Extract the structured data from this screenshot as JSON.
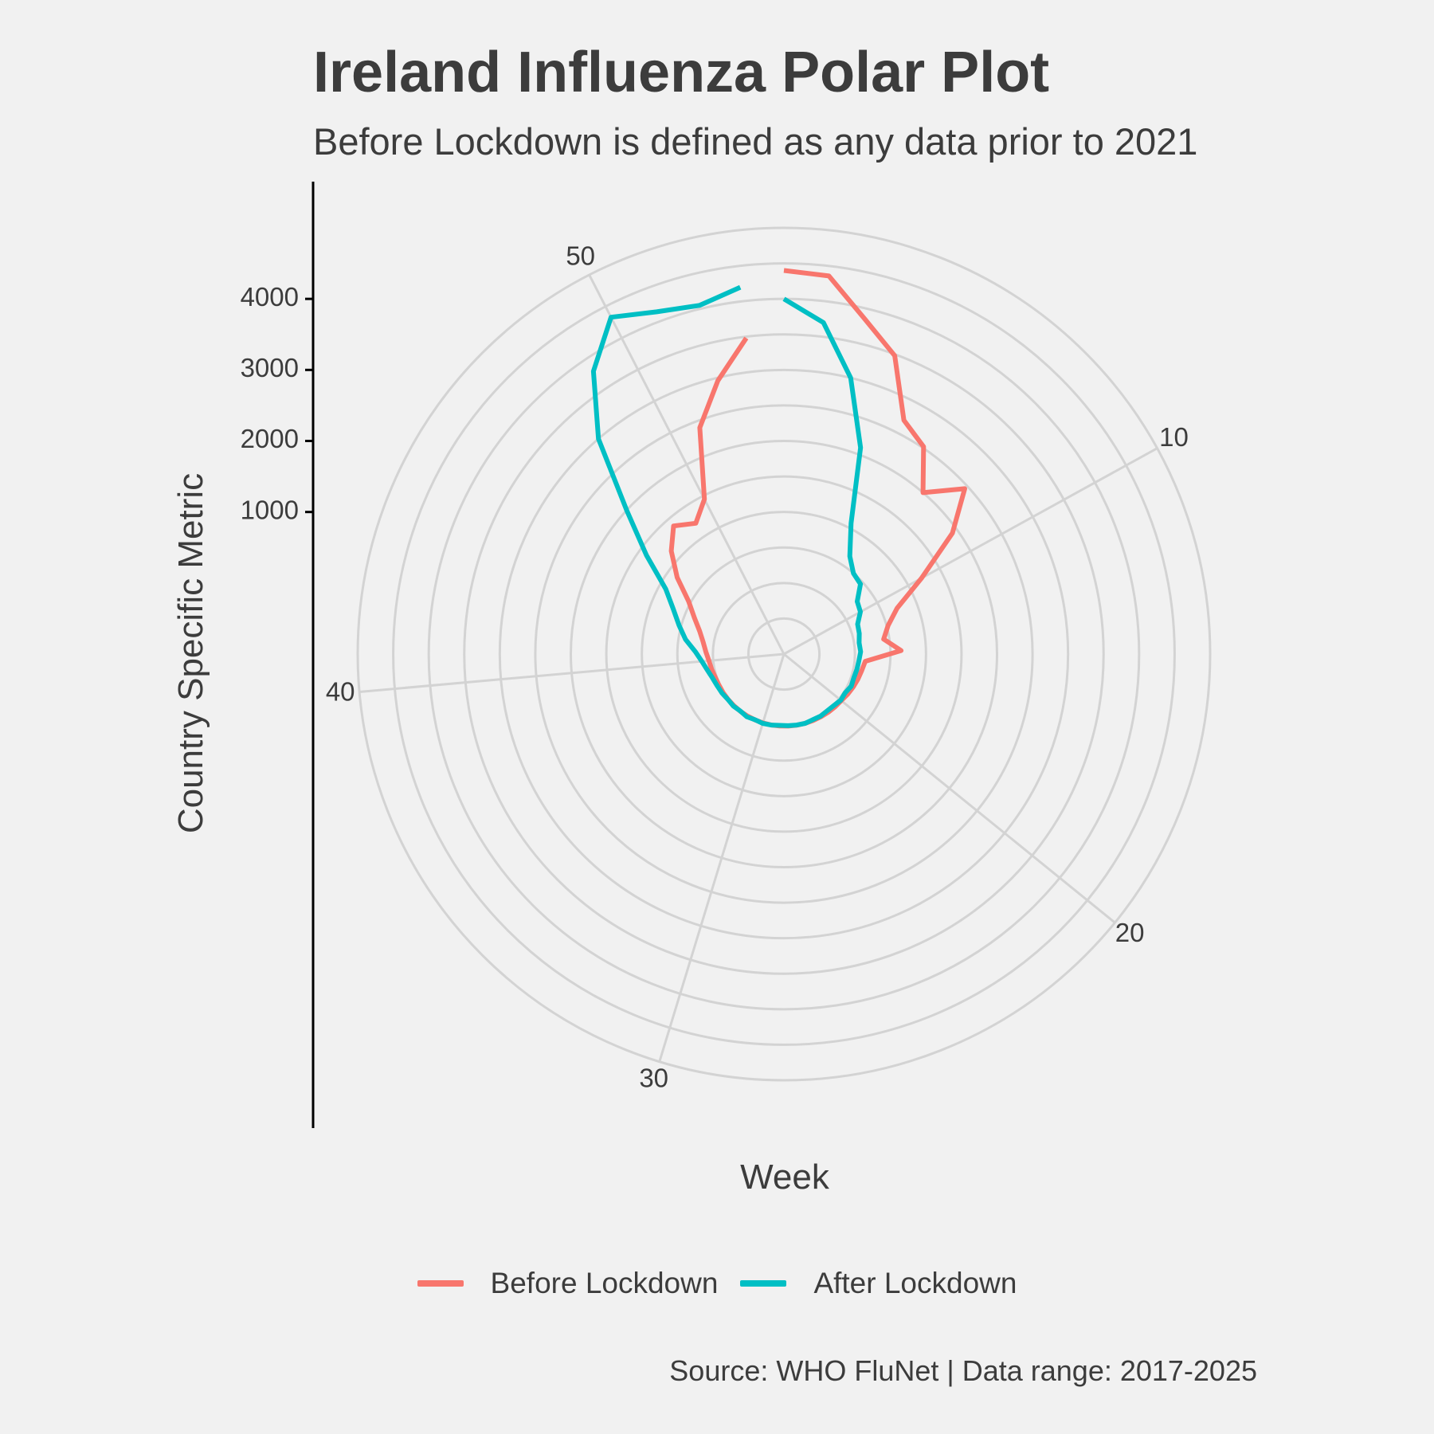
{
  "title": "Ireland Influenza Polar Plot",
  "subtitle": "Before Lockdown is defined as any data prior to 2021",
  "caption": "Source: WHO FluNet | Data range: 2017-2025",
  "chart_data": {
    "type": "line",
    "coord": "polar",
    "xlabel": "Week",
    "ylabel": "Country Specific Metric",
    "x_ticks": [
      "10",
      "20",
      "30",
      "40",
      "50"
    ],
    "y_ticks": [
      "1000",
      "2000",
      "3000",
      "4000"
    ],
    "ylim": [
      -1000,
      5000
    ],
    "x_range": [
      1,
      53
    ],
    "grid": true,
    "legend_position": "bottom",
    "series": [
      {
        "name": "Before Lockdown",
        "color": "#F8766D",
        "x": [
          1,
          2,
          3,
          4,
          5,
          6,
          7,
          8,
          9,
          10,
          11,
          12,
          13,
          14,
          15,
          16,
          17,
          18,
          19,
          20,
          21,
          22,
          23,
          24,
          25,
          26,
          27,
          28,
          29,
          30,
          31,
          32,
          33,
          34,
          35,
          36,
          37,
          38,
          39,
          40,
          41,
          42,
          43,
          44,
          45,
          46,
          47,
          48,
          49,
          50,
          51,
          52,
          53
        ],
        "values": [
          4400,
          4360,
          3850,
          3480,
          2700,
          2520,
          2000,
          2450,
          1920,
          1210,
          720,
          520,
          420,
          650,
          150,
          120,
          100,
          80,
          60,
          40,
          35,
          30,
          25,
          22,
          20,
          18,
          16,
          15,
          14,
          13,
          12,
          12,
          12,
          12,
          12,
          13,
          14,
          20,
          40,
          60,
          100,
          150,
          230,
          360,
          530,
          850,
          1150,
          1380,
          1220,
          1450,
          2400,
          2960,
          3480
        ]
      },
      {
        "name": "After Lockdown",
        "color": "#00BFC4",
        "x": [
          1,
          2,
          3,
          4,
          5,
          6,
          7,
          8,
          9,
          10,
          11,
          12,
          13,
          14,
          15,
          16,
          17,
          18,
          19,
          20,
          21,
          22,
          23,
          24,
          25,
          26,
          27,
          28,
          29,
          30,
          31,
          32,
          33,
          34,
          35,
          36,
          37,
          38,
          39,
          40,
          41,
          42,
          43,
          44,
          45,
          46,
          47,
          48,
          49,
          50,
          51,
          52,
          53
        ],
        "values": [
          4000,
          3700,
          3000,
          2100,
          1070,
          660,
          500,
          460,
          270,
          230,
          120,
          100,
          70,
          80,
          60,
          50,
          40,
          50,
          20,
          30,
          10,
          5,
          15,
          10,
          20,
          15,
          10,
          5,
          15,
          20,
          10,
          25,
          10,
          20,
          15,
          30,
          40,
          60,
          100,
          160,
          250,
          400,
          530,
          680,
          900,
          1380,
          2000,
          3000,
          3800,
          4330,
          4140,
          4050,
          4200
        ]
      }
    ]
  }
}
